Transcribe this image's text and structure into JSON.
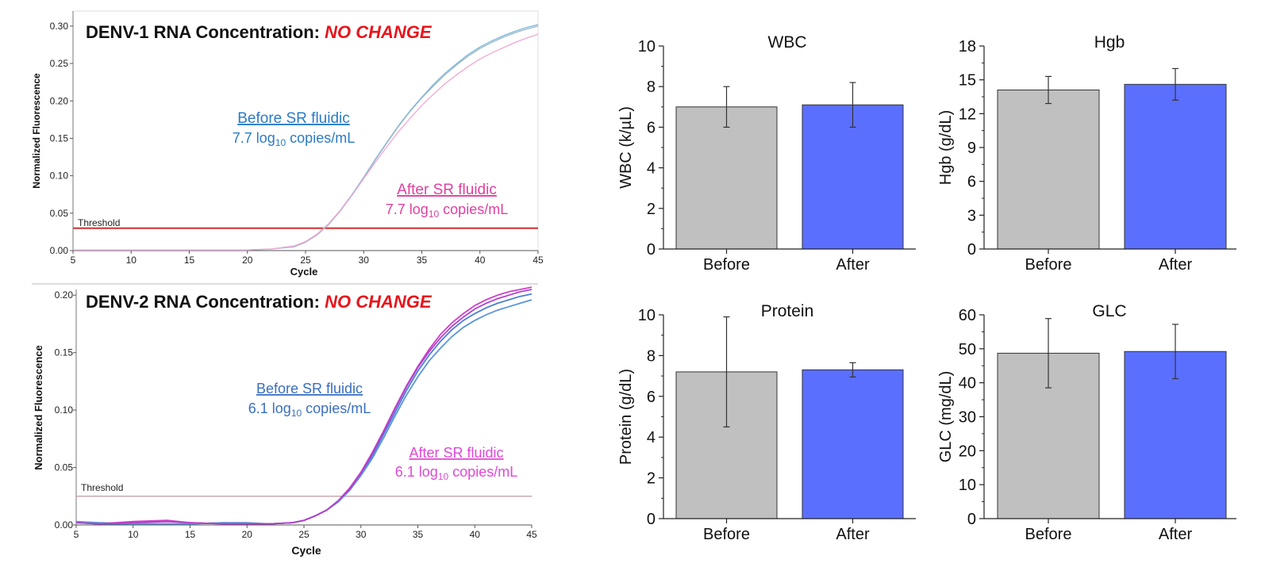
{
  "chart_data": [
    {
      "id": "denv1",
      "type": "line",
      "title_prefix": "DENV-1 RNA Concentration: ",
      "title_highlight": "NO CHANGE",
      "xlabel": "Cycle",
      "ylabel": "Normalized Fluorescence",
      "xlim": [
        5,
        45
      ],
      "ylim": [
        0,
        0.32
      ],
      "xticks": [
        "5",
        "10",
        "15",
        "20",
        "25",
        "30",
        "35",
        "40",
        "45"
      ],
      "yticks": [
        "0.00",
        "0.05",
        "0.10",
        "0.15",
        "0.20",
        "0.25",
        "0.30"
      ],
      "threshold": {
        "label": "Threshold",
        "value": 0.03,
        "color": "#d03030"
      },
      "annotations": [
        {
          "title": "Before SR fluidic",
          "line2_prefix": "7.7 log",
          "line2_sub": "10",
          "line2_suffix": " copies/mL",
          "color": "#2a7bc4"
        },
        {
          "title": "After SR fluidic",
          "line2_prefix": "7.7 log",
          "line2_sub": "10",
          "line2_suffix": " copies/mL",
          "color": "#e0409f"
        }
      ],
      "series": [
        {
          "color": "#7ab8d9",
          "x": [
            5,
            10,
            15,
            20,
            22,
            24,
            25,
            26,
            27,
            28,
            29,
            30,
            31,
            32,
            33,
            34,
            35,
            36,
            37,
            38,
            39,
            40,
            41,
            42,
            43,
            44,
            45
          ],
          "y": [
            0.001,
            0.001,
            0.001,
            0.001,
            0.002,
            0.006,
            0.012,
            0.022,
            0.036,
            0.054,
            0.075,
            0.098,
            0.122,
            0.145,
            0.167,
            0.187,
            0.205,
            0.222,
            0.237,
            0.25,
            0.262,
            0.272,
            0.28,
            0.287,
            0.293,
            0.298,
            0.302
          ]
        },
        {
          "color": "#9fb8c8",
          "x": [
            5,
            10,
            15,
            20,
            22,
            24,
            25,
            26,
            27,
            28,
            29,
            30,
            31,
            32,
            33,
            34,
            35,
            36,
            37,
            38,
            39,
            40,
            41,
            42,
            43,
            44,
            45
          ],
          "y": [
            0.001,
            0.001,
            0.001,
            0.001,
            0.002,
            0.005,
            0.011,
            0.021,
            0.035,
            0.053,
            0.074,
            0.097,
            0.121,
            0.144,
            0.166,
            0.186,
            0.204,
            0.22,
            0.235,
            0.248,
            0.26,
            0.27,
            0.278,
            0.285,
            0.291,
            0.296,
            0.3
          ]
        },
        {
          "color": "#f2a6d4",
          "x": [
            5,
            10,
            15,
            20,
            22,
            24,
            25,
            26,
            27,
            28,
            29,
            30,
            31,
            32,
            33,
            34,
            35,
            36,
            37,
            38,
            39,
            40,
            41,
            42,
            43,
            44,
            45
          ],
          "y": [
            0.001,
            0.001,
            0.001,
            0.001,
            0.002,
            0.006,
            0.012,
            0.022,
            0.036,
            0.054,
            0.074,
            0.096,
            0.118,
            0.139,
            0.159,
            0.177,
            0.194,
            0.209,
            0.223,
            0.235,
            0.246,
            0.256,
            0.264,
            0.271,
            0.278,
            0.284,
            0.289
          ]
        }
      ]
    },
    {
      "id": "denv2",
      "type": "line",
      "title_prefix": "DENV-2 RNA Concentration: ",
      "title_highlight": "NO CHANGE",
      "xlabel": "Cycle",
      "ylabel": "Normalized Fluorescence",
      "xlim": [
        5,
        45
      ],
      "ylim": [
        0,
        0.205
      ],
      "xticks": [
        "5",
        "10",
        "15",
        "20",
        "25",
        "30",
        "35",
        "40",
        "45"
      ],
      "yticks": [
        "0.00",
        "0.05",
        "0.10",
        "0.15",
        "0.20"
      ],
      "threshold": {
        "label": "Threshold",
        "value": 0.025,
        "color": "#c9a8b0"
      },
      "annotations": [
        {
          "title": "Before SR fluidic",
          "line2_prefix": "6.1 log",
          "line2_sub": "10",
          "line2_suffix": " copies/mL",
          "color": "#3a6fc0"
        },
        {
          "title": "After SR fluidic",
          "line2_prefix": "6.1 log",
          "line2_sub": "10",
          "line2_suffix": " copies/mL",
          "color": "#e048d8"
        }
      ],
      "series": [
        {
          "color": "#4a7fd0",
          "x": [
            5,
            7,
            10,
            13,
            15,
            18,
            20,
            22,
            24,
            25,
            26,
            27,
            28,
            29,
            30,
            31,
            32,
            33,
            34,
            35,
            36,
            37,
            38,
            39,
            40,
            41,
            42,
            43,
            44,
            45
          ],
          "y": [
            0.002,
            0.001,
            0.001,
            0.001,
            0.001,
            0.002,
            0.001,
            0.001,
            0.002,
            0.004,
            0.008,
            0.013,
            0.02,
            0.03,
            0.044,
            0.06,
            0.079,
            0.098,
            0.117,
            0.134,
            0.148,
            0.16,
            0.17,
            0.178,
            0.184,
            0.189,
            0.193,
            0.196,
            0.199,
            0.201
          ]
        },
        {
          "color": "#5a96d8",
          "x": [
            5,
            7,
            10,
            13,
            15,
            18,
            20,
            22,
            24,
            25,
            26,
            27,
            28,
            29,
            30,
            31,
            32,
            33,
            34,
            35,
            36,
            37,
            38,
            39,
            40,
            41,
            42,
            43,
            44,
            45
          ],
          "y": [
            0.003,
            0.002,
            0.001,
            0.001,
            0.001,
            0.002,
            0.002,
            0.001,
            0.002,
            0.004,
            0.008,
            0.013,
            0.02,
            0.03,
            0.043,
            0.058,
            0.076,
            0.095,
            0.113,
            0.129,
            0.143,
            0.154,
            0.164,
            0.172,
            0.178,
            0.183,
            0.187,
            0.19,
            0.193,
            0.196
          ]
        },
        {
          "color": "#d040c8",
          "x": [
            5,
            7,
            10,
            13,
            15,
            18,
            20,
            22,
            24,
            25,
            26,
            27,
            28,
            29,
            30,
            31,
            32,
            33,
            34,
            35,
            36,
            37,
            38,
            39,
            40,
            41,
            42,
            43,
            44,
            45
          ],
          "y": [
            0.002,
            0.001,
            0.003,
            0.004,
            0.002,
            0.001,
            0.001,
            0.001,
            0.002,
            0.004,
            0.008,
            0.013,
            0.021,
            0.032,
            0.046,
            0.063,
            0.082,
            0.102,
            0.121,
            0.138,
            0.153,
            0.166,
            0.176,
            0.184,
            0.191,
            0.196,
            0.2,
            0.203,
            0.205,
            0.207
          ]
        },
        {
          "color": "#b040d0",
          "x": [
            5,
            7,
            10,
            13,
            15,
            18,
            20,
            22,
            24,
            25,
            26,
            27,
            28,
            29,
            30,
            31,
            32,
            33,
            34,
            35,
            36,
            37,
            38,
            39,
            40,
            41,
            42,
            43,
            44,
            45
          ],
          "y": [
            0.002,
            0.001,
            0.002,
            0.003,
            0.002,
            0.001,
            0.001,
            0.001,
            0.002,
            0.004,
            0.008,
            0.013,
            0.021,
            0.031,
            0.045,
            0.062,
            0.081,
            0.101,
            0.12,
            0.137,
            0.151,
            0.163,
            0.173,
            0.181,
            0.188,
            0.193,
            0.197,
            0.2,
            0.203,
            0.205
          ]
        }
      ]
    },
    {
      "id": "wbc",
      "type": "bar",
      "title": "WBC",
      "ylabel": "WBC (k/µL)",
      "categories": [
        "Before",
        "After"
      ],
      "values": [
        7.0,
        7.1
      ],
      "errors": [
        1.0,
        1.1
      ],
      "ylim": [
        0,
        10
      ],
      "yticks": [
        0,
        2,
        4,
        6,
        8,
        10
      ],
      "colors": [
        "#c0c0c0",
        "#5b6fff"
      ]
    },
    {
      "id": "hgb",
      "type": "bar",
      "title": "Hgb",
      "ylabel": "Hgb (g/dL)",
      "categories": [
        "Before",
        "After"
      ],
      "values": [
        14.1,
        14.6
      ],
      "errors": [
        1.2,
        1.4
      ],
      "ylim": [
        0,
        18
      ],
      "yticks": [
        0,
        3,
        6,
        9,
        12,
        15,
        18
      ],
      "colors": [
        "#c0c0c0",
        "#5b6fff"
      ]
    },
    {
      "id": "protein",
      "type": "bar",
      "title": "Protein",
      "ylabel": "Protein (g/dL)",
      "categories": [
        "Before",
        "After"
      ],
      "values": [
        7.2,
        7.3
      ],
      "errors": [
        2.7,
        0.35
      ],
      "ylim": [
        0,
        10
      ],
      "yticks": [
        0,
        2,
        4,
        6,
        8,
        10
      ],
      "colors": [
        "#c0c0c0",
        "#5b6fff"
      ]
    },
    {
      "id": "glc",
      "type": "bar",
      "title": "GLC",
      "ylabel": "GLC (mg/dL)",
      "categories": [
        "Before",
        "After"
      ],
      "values": [
        48.7,
        49.2
      ],
      "errors": [
        10.2,
        8.0
      ],
      "ylim": [
        0,
        60
      ],
      "yticks": [
        0,
        10,
        20,
        30,
        40,
        50,
        60
      ],
      "colors": [
        "#c0c0c0",
        "#5b6fff"
      ]
    }
  ]
}
